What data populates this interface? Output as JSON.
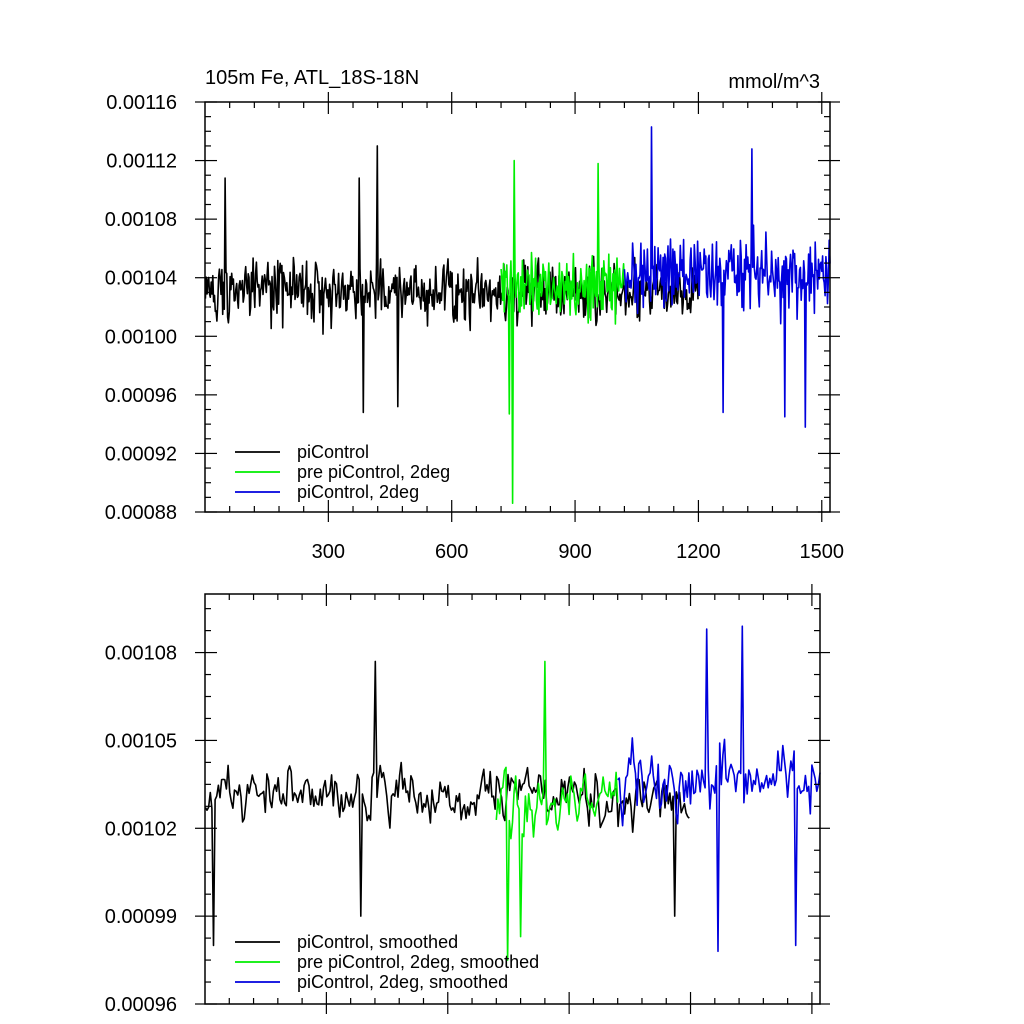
{
  "colors": {
    "piControl": "#000000",
    "pre_piControl_2deg": "#00ee00",
    "piControl_2deg": "#0000dd"
  },
  "chart_data": [
    {
      "type": "line",
      "title": "105m Fe, ATL_18S-18N",
      "units": "mmol/m^3",
      "xlim": [
        0,
        1520
      ],
      "ylim": [
        0.00088,
        0.00116
      ],
      "x_ticks": [
        300,
        600,
        900,
        1200,
        1500
      ],
      "x_tick_labels": [
        "300",
        "600",
        "900",
        "1200",
        "1500"
      ],
      "y_ticks": [
        0.00088,
        0.00092,
        0.00096,
        0.001,
        0.00104,
        0.00108,
        0.00112,
        0.00116
      ],
      "y_tick_labels": [
        "0.00088",
        "0.00092",
        "0.00096",
        "0.00100",
        "0.00104",
        "0.00108",
        "0.00112",
        "0.00116"
      ],
      "legend_position": "bottom-left",
      "series": [
        {
          "name": "piControl",
          "x_range": [
            1,
            1200
          ],
          "mean": 0.001031,
          "amplitude": 2.4e-05,
          "spikes": [
            [
              385,
              0.000948
            ],
            [
              420,
              0.00113
            ],
            [
              470,
              0.000952
            ],
            [
              50,
              0.001108
            ],
            [
              375,
              0.001108
            ]
          ]
        },
        {
          "name": "pre piControl, 2deg",
          "x_range": [
            720,
            1020
          ],
          "mean": 0.001035,
          "amplitude": 2.8e-05,
          "spikes": [
            [
              748,
              0.000886
            ],
            [
              752,
              0.00112
            ],
            [
              957,
              0.001118
            ],
            [
              740,
              0.000947
            ]
          ]
        },
        {
          "name": "piControl, 2deg",
          "x_range": [
            1020,
            1520
          ],
          "mean": 0.001042,
          "amplitude": 2.8e-05,
          "spikes": [
            [
              1087,
              0.001143
            ],
            [
              1330,
              0.001128
            ],
            [
              1460,
              0.000938
            ],
            [
              1260,
              0.000948
            ],
            [
              1410,
              0.000945
            ]
          ]
        }
      ]
    },
    {
      "type": "line",
      "xlim": [
        0,
        1520
      ],
      "ylim": [
        0.00096,
        0.0011
      ],
      "y_ticks": [
        0.00096,
        0.00099,
        0.00102,
        0.00105,
        0.00108
      ],
      "y_tick_labels": [
        "0.00096",
        "0.00099",
        "0.00102",
        "0.00105",
        "0.00108"
      ],
      "x_ticks": [
        300,
        600,
        900,
        1200,
        1500
      ],
      "legend_position": "bottom-left",
      "series": [
        {
          "name": "piControl, smoothed",
          "x_range": [
            1,
            1200
          ],
          "mean": 0.001031,
          "amplitude": 1.8e-05,
          "spikes": [
            [
              20,
              0.00098
            ],
            [
              385,
              0.00099
            ],
            [
              420,
              0.001077
            ],
            [
              1160,
              0.00099
            ]
          ]
        },
        {
          "name": "pre piControl, 2deg, smoothed",
          "x_range": [
            720,
            1020
          ],
          "mean": 0.00103,
          "amplitude": 2e-05,
          "spikes": [
            [
              748,
              0.000975
            ],
            [
              840,
              0.001077
            ],
            [
              780,
              0.000983
            ]
          ]
        },
        {
          "name": "piControl, 2deg, smoothed",
          "x_range": [
            1020,
            1520
          ],
          "mean": 0.001037,
          "amplitude": 2.2e-05,
          "spikes": [
            [
              1330,
              0.001089
            ],
            [
              1240,
              0.001088
            ],
            [
              1270,
              0.000978
            ],
            [
              1460,
              0.00098
            ]
          ]
        }
      ]
    }
  ]
}
